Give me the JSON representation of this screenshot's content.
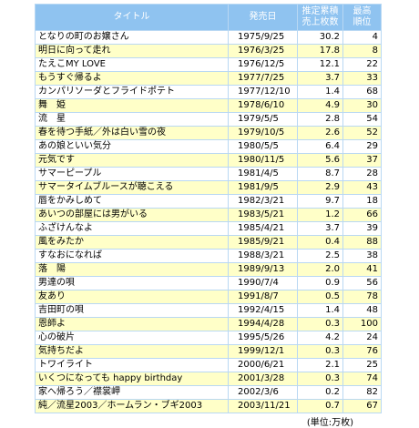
{
  "table": {
    "header": [
      "タイトル",
      "発売日",
      "推定累積\n売上枚数",
      "最高\n順位"
    ],
    "rows": [
      [
        "となりの町のお嬢さん",
        "1975/9/25",
        "30.2",
        "4"
      ],
      [
        "明日に向って走れ",
        "1976/3/25",
        "17.8",
        "8"
      ],
      [
        "たえこMY LOVE",
        "1976/12/5",
        "12.1",
        "22"
      ],
      [
        "もうすぐ帰るよ",
        "1977/7/25",
        "3.7",
        "33"
      ],
      [
        "カンパリソーダとフライドポテト",
        "1977/12/10",
        "1.4",
        "68"
      ],
      [
        "舞　姫",
        "1978/6/10",
        "4.9",
        "30"
      ],
      [
        "流　星",
        "1979/5/5",
        "2.8",
        "54"
      ],
      [
        "春を待つ手紙／外は白い雪の夜",
        "1979/10/5",
        "2.6",
        "52"
      ],
      [
        "あの娘といい気分",
        "1980/5/5",
        "6.4",
        "29"
      ],
      [
        "元気です",
        "1980/11/5",
        "5.6",
        "37"
      ],
      [
        "サマーピープル",
        "1981/4/5",
        "8.7",
        "28"
      ],
      [
        "サマータイムブルースが聴こえる",
        "1981/9/5",
        "2.9",
        "43"
      ],
      [
        "唇をかみしめて",
        "1982/3/21",
        "9.7",
        "18"
      ],
      [
        "あいつの部屋には男がいる",
        "1983/5/21",
        "1.2",
        "66"
      ],
      [
        "ふざけんなよ",
        "1985/4/21",
        "3.7",
        "39"
      ],
      [
        "風をみたか",
        "1985/9/21",
        "0.4",
        "88"
      ],
      [
        "すなおになれば",
        "1988/3/21",
        "2.5",
        "38"
      ],
      [
        "落　陽",
        "1989/9/13",
        "2.0",
        "41"
      ],
      [
        "男達の唄",
        "1990/7/4",
        "0.9",
        "56"
      ],
      [
        "友あり",
        "1991/8/7",
        "0.5",
        "78"
      ],
      [
        "吉田町の唄",
        "1992/4/15",
        "1.4",
        "48"
      ],
      [
        "恩師よ",
        "1994/4/28",
        "0.3",
        "100"
      ],
      [
        "心の破片",
        "1995/5/26",
        "4.2",
        "24"
      ],
      [
        "気持ちだよ",
        "1999/12/1",
        "0.3",
        "76"
      ],
      [
        "トワイライト",
        "2000/6/21",
        "2.1",
        "25"
      ],
      [
        "いくつになっても happy birthday",
        "2001/3/28",
        "0.3",
        "74"
      ],
      [
        "家へ帰ろう／襟裳岬",
        "2002/3/6",
        "0.2",
        "82"
      ],
      [
        "純／流星2003／ホームラン・ブギ2003",
        "2003/11/21",
        "0.7",
        "67"
      ]
    ],
    "footnote": "(単位:万枚)"
  }
}
